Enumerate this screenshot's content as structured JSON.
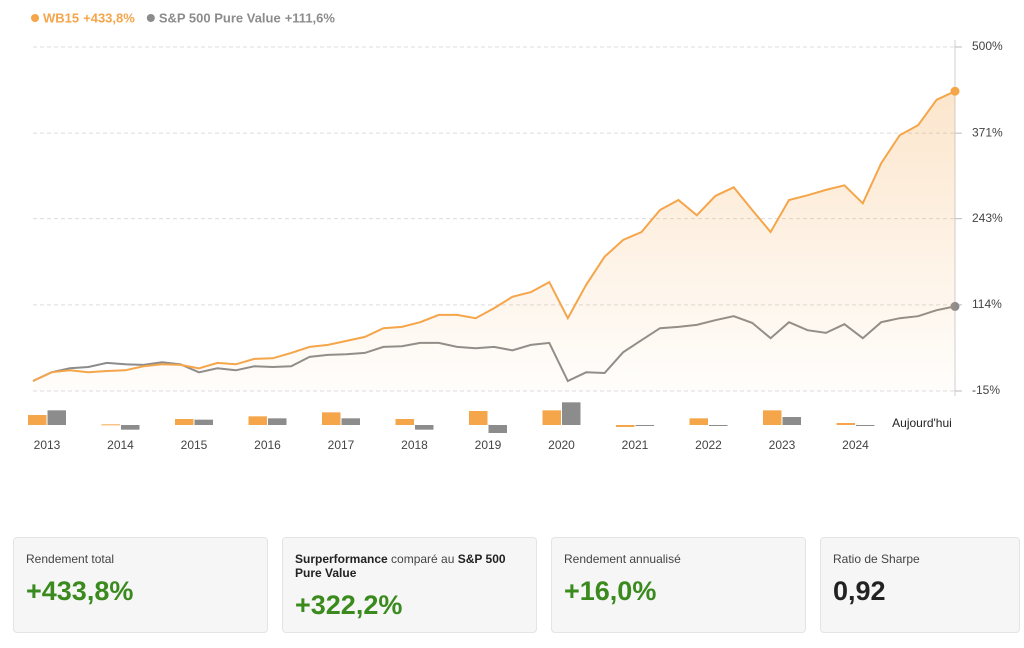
{
  "chart_data": [
    {
      "type": "line",
      "ylim": [
        -15,
        500
      ],
      "yticks": [
        {
          "value": -15,
          "label": "-15%"
        },
        {
          "value": 114,
          "label": "114%"
        },
        {
          "value": 243,
          "label": "243%"
        },
        {
          "value": 371,
          "label": "371%"
        },
        {
          "value": 500,
          "label": "500%"
        }
      ],
      "grid": true,
      "series": [
        {
          "name": "WB15",
          "color": "#f5a54a",
          "end_label": "+433,8%",
          "values": [
            0,
            13,
            16,
            13,
            15,
            16,
            22,
            25,
            24,
            19,
            27,
            25,
            33,
            34,
            42,
            51,
            54,
            60,
            66,
            79,
            81,
            88,
            99,
            99,
            94,
            109,
            126,
            133,
            148,
            94,
            144,
            186,
            211,
            223,
            256,
            271,
            248,
            277,
            290,
            256,
            223,
            271,
            278,
            286,
            293,
            266,
            326,
            368,
            383,
            421,
            433.8
          ]
        },
        {
          "name": "S&P 500 Pure Value",
          "color": "#8c8c8c",
          "end_label": "+111,6%",
          "values": [
            0,
            13,
            19,
            21,
            27,
            25,
            24,
            28,
            25,
            13,
            19,
            16,
            22,
            21,
            22,
            36,
            39,
            40,
            42,
            51,
            52,
            57,
            57,
            51,
            49,
            51,
            46,
            54,
            57,
            0,
            13,
            12,
            43,
            61,
            79,
            81,
            84,
            91,
            97,
            87,
            64,
            88,
            76,
            72,
            85,
            64,
            88,
            94,
            97,
            106,
            111.6
          ]
        }
      ]
    },
    {
      "type": "bar",
      "categories": [
        "2013",
        "2014",
        "2015",
        "2016",
        "2017",
        "2018",
        "2019",
        "2020",
        "2021",
        "2022",
        "2023",
        "2024"
      ],
      "end_label": "Aujourd'hui",
      "ylim": [
        -22.5,
        34.5
      ],
      "series": [
        {
          "name": "WB15",
          "color": "#f5a54a",
          "values": [
            15,
            1,
            9,
            13,
            19,
            9,
            21,
            22,
            -3,
            10,
            22,
            3
          ]
        },
        {
          "name": "S&P 500 Pure Value",
          "color": "#8c8c8c",
          "values": [
            22,
            -7,
            8,
            10,
            10,
            -7,
            -12,
            34,
            -1,
            0,
            12,
            -1
          ]
        }
      ]
    }
  ],
  "cards": [
    {
      "label_parts": [
        {
          "text": "Rendement total",
          "bold": false
        }
      ],
      "value": "+433,8%",
      "color": "#3a8a1e"
    },
    {
      "label_parts": [
        {
          "text": "Surperformance",
          "bold": true
        },
        {
          "text": " comparé au ",
          "bold": false
        },
        {
          "text": "S&P 500 Pure Value",
          "bold": true
        }
      ],
      "value": "+322,2%",
      "color": "#3a8a1e"
    },
    {
      "label_parts": [
        {
          "text": "Rendement annualisé",
          "bold": false
        }
      ],
      "value": "+16,0%",
      "color": "#3a8a1e"
    },
    {
      "label_parts": [
        {
          "text": "Ratio de Sharpe",
          "bold": false
        }
      ],
      "value": "0,92",
      "color": "#222222"
    }
  ]
}
